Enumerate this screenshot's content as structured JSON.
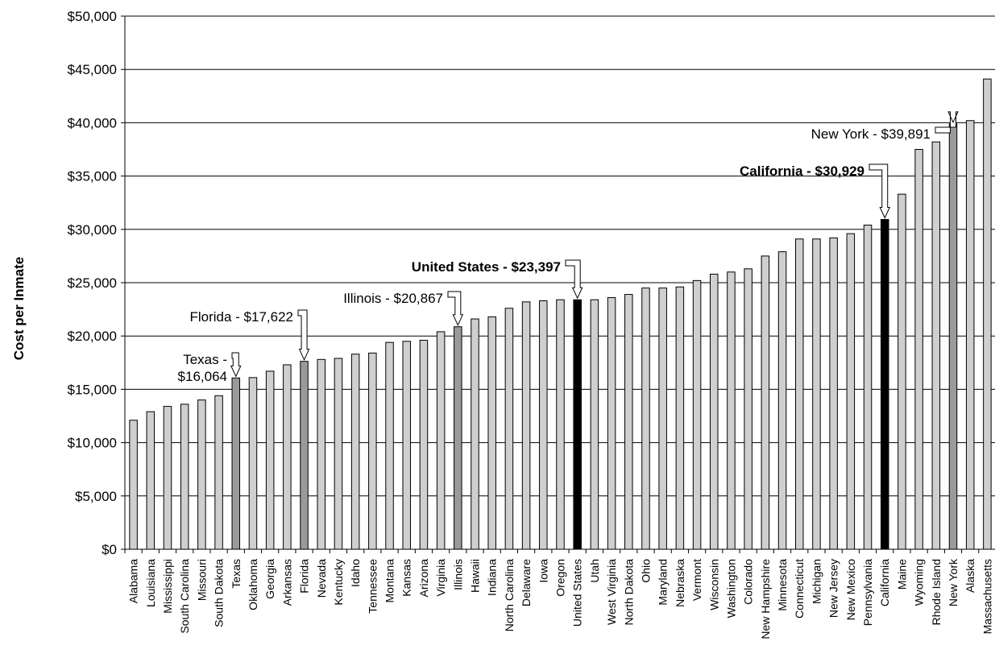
{
  "chart_data": {
    "type": "bar",
    "ylabel": "Cost per Inmate",
    "xlabel": "",
    "title": "",
    "ylim": [
      0,
      50000
    ],
    "y_ticks": [
      0,
      5000,
      10000,
      15000,
      20000,
      25000,
      30000,
      35000,
      40000,
      45000,
      50000
    ],
    "y_tick_labels": [
      "$0",
      "$5,000",
      "$10,000",
      "$15,000",
      "$20,000",
      "$25,000",
      "$30,000",
      "$35,000",
      "$40,000",
      "$45,000",
      "$50,000"
    ],
    "grid": "horizontal",
    "colors": {
      "default": "#cfcfcf",
      "highlight": "#9a9a9a",
      "emphasis": "#000000",
      "grid": "#000000"
    },
    "categories": [
      "Alabama",
      "Louisiana",
      "Mississippi",
      "South Carolina",
      "Missouri",
      "South Dakota",
      "Texas",
      "Oklahoma",
      "Georgia",
      "Arkansas",
      "Florida",
      "Nevada",
      "Kentucky",
      "Idaho",
      "Tennessee",
      "Montana",
      "Kansas",
      "Arizona",
      "Virginia",
      "Illinois",
      "Hawaii",
      "Indiana",
      "North Carolina",
      "Delaware",
      "Iowa",
      "Oregon",
      "United States",
      "Utah",
      "West Virginia",
      "North Dakota",
      "Ohio",
      "Maryland",
      "Nebraska",
      "Vermont",
      "Wisconsin",
      "Washington",
      "Colorado",
      "New Hampshire",
      "Minnesota",
      "Connecticut",
      "Michigan",
      "New Jersey",
      "New Mexico",
      "Pennsylvania",
      "California",
      "Maine",
      "Wyoming",
      "Rhode Island",
      "New York",
      "Alaska",
      "Massachusetts"
    ],
    "values": [
      12100,
      12900,
      13400,
      13600,
      14000,
      14400,
      16064,
      16100,
      16700,
      17300,
      17622,
      17800,
      17900,
      18300,
      18400,
      19400,
      19500,
      19600,
      20400,
      20867,
      21600,
      21800,
      22600,
      23200,
      23300,
      23400,
      23397,
      23400,
      23600,
      23900,
      24500,
      24500,
      24600,
      25200,
      25800,
      26000,
      26300,
      27500,
      27900,
      29100,
      29100,
      29200,
      29600,
      30400,
      30929,
      33300,
      37500,
      38200,
      39891,
      40200,
      44100
    ],
    "bar_styles": [
      "default",
      "default",
      "default",
      "default",
      "default",
      "default",
      "highlight",
      "default",
      "default",
      "default",
      "highlight",
      "default",
      "default",
      "default",
      "default",
      "default",
      "default",
      "default",
      "default",
      "highlight",
      "default",
      "default",
      "default",
      "default",
      "default",
      "default",
      "emphasis",
      "default",
      "default",
      "default",
      "default",
      "default",
      "default",
      "default",
      "default",
      "default",
      "default",
      "default",
      "default",
      "default",
      "default",
      "default",
      "default",
      "default",
      "emphasis",
      "default",
      "default",
      "default",
      "highlight",
      "default",
      "default"
    ],
    "annotations": [
      {
        "target": "New York",
        "lines": [
          "New York - $39,891"
        ],
        "bold": false
      },
      {
        "target": "California",
        "lines": [
          "California - $30,929"
        ],
        "bold": true
      },
      {
        "target": "United States",
        "lines": [
          "United States - $23,397"
        ],
        "bold": true
      },
      {
        "target": "Illinois",
        "lines": [
          "Illinois - $20,867"
        ],
        "bold": false
      },
      {
        "target": "Florida",
        "lines": [
          "Florida - $17,622"
        ],
        "bold": false
      },
      {
        "target": "Texas",
        "lines": [
          "Texas -",
          "$16,064"
        ],
        "bold": false
      }
    ]
  }
}
